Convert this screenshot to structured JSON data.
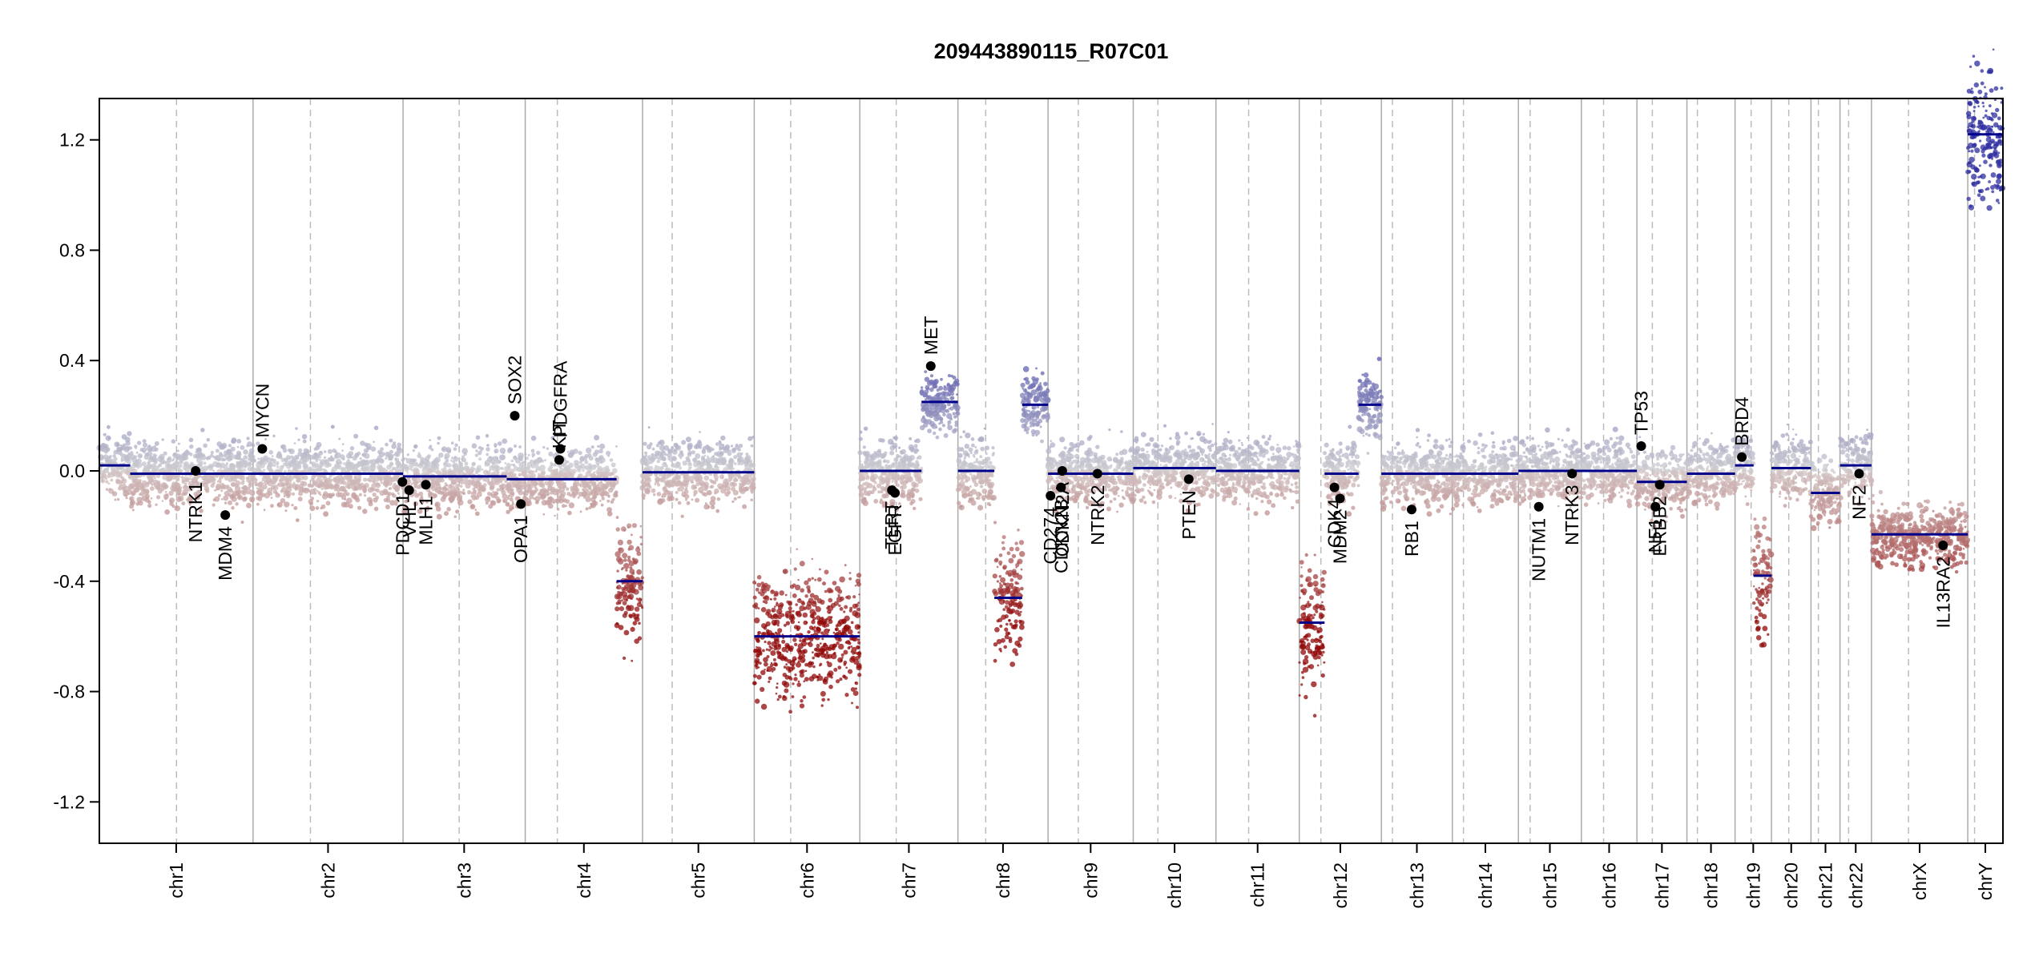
{
  "chart_data": {
    "type": "scatter",
    "title": "209443890115_R07C01",
    "xlabel": "",
    "ylabel": "",
    "ylim": [
      -1.35,
      1.35
    ],
    "yticks": [
      {
        "value": -1.2,
        "label": "-1.2"
      },
      {
        "value": -0.8,
        "label": "-0.8"
      },
      {
        "value": -0.4,
        "label": "-0.4"
      },
      {
        "value": 0.0,
        "label": "0.0"
      },
      {
        "value": 0.4,
        "label": "0.4"
      },
      {
        "value": 0.8,
        "label": "0.8"
      },
      {
        "value": 1.2,
        "label": "1.2"
      }
    ],
    "grid": false,
    "chromosomes": [
      {
        "name": "chr1",
        "start": 0,
        "end": 249,
        "centromere": 125
      },
      {
        "name": "chr2",
        "start": 249,
        "end": 492,
        "centromere": 342
      },
      {
        "name": "chr3",
        "start": 492,
        "end": 690,
        "centromere": 583
      },
      {
        "name": "chr4",
        "start": 690,
        "end": 880,
        "centromere": 742
      },
      {
        "name": "chr5",
        "start": 880,
        "end": 1061,
        "centromere": 928
      },
      {
        "name": "chr6",
        "start": 1061,
        "end": 1232,
        "centromere": 1120
      },
      {
        "name": "chr7",
        "start": 1232,
        "end": 1391,
        "centromere": 1291
      },
      {
        "name": "chr8",
        "start": 1391,
        "end": 1537,
        "centromere": 1436
      },
      {
        "name": "chr9",
        "start": 1537,
        "end": 1675,
        "centromere": 1586
      },
      {
        "name": "chr10",
        "start": 1675,
        "end": 1809,
        "centromere": 1715
      },
      {
        "name": "chr11",
        "start": 1809,
        "end": 1944,
        "centromere": 1862
      },
      {
        "name": "chr12",
        "start": 1944,
        "end": 2077,
        "centromere": 1979
      },
      {
        "name": "chr13",
        "start": 2077,
        "end": 2192,
        "centromere": 2095
      },
      {
        "name": "chr14",
        "start": 2192,
        "end": 2299,
        "centromere": 2210
      },
      {
        "name": "chr15",
        "start": 2299,
        "end": 2401,
        "centromere": 2318
      },
      {
        "name": "chr16",
        "start": 2401,
        "end": 2491,
        "centromere": 2437
      },
      {
        "name": "chr17",
        "start": 2491,
        "end": 2572,
        "centromere": 2516
      },
      {
        "name": "chr18",
        "start": 2572,
        "end": 2650,
        "centromere": 2589
      },
      {
        "name": "chr19",
        "start": 2650,
        "end": 2709,
        "centromere": 2676
      },
      {
        "name": "chr20",
        "start": 2709,
        "end": 2773,
        "centromere": 2737
      },
      {
        "name": "chr21",
        "start": 2773,
        "end": 2820,
        "centromere": 2785
      },
      {
        "name": "chr22",
        "start": 2820,
        "end": 2871,
        "centromere": 2834
      },
      {
        "name": "chrX",
        "start": 2871,
        "end": 3027,
        "centromere": 2931
      },
      {
        "name": "chrY",
        "start": 3027,
        "end": 3084,
        "centromere": 3038
      }
    ],
    "segments": [
      {
        "start": 0,
        "end": 50,
        "value": 0.02
      },
      {
        "start": 50,
        "end": 492,
        "value": -0.01
      },
      {
        "start": 492,
        "end": 660,
        "value": -0.02
      },
      {
        "start": 660,
        "end": 838,
        "value": -0.03
      },
      {
        "start": 838,
        "end": 880,
        "value": -0.4
      },
      {
        "start": 880,
        "end": 1061,
        "value": -0.005
      },
      {
        "start": 1061,
        "end": 1232,
        "value": -0.6
      },
      {
        "start": 1232,
        "end": 1332,
        "value": 0.0
      },
      {
        "start": 1332,
        "end": 1391,
        "value": 0.25
      },
      {
        "start": 1391,
        "end": 1450,
        "value": 0.0
      },
      {
        "start": 1450,
        "end": 1495,
        "value": -0.46
      },
      {
        "start": 1495,
        "end": 1537,
        "value": 0.24
      },
      {
        "start": 1537,
        "end": 1675,
        "value": -0.01
      },
      {
        "start": 1675,
        "end": 1809,
        "value": 0.01
      },
      {
        "start": 1809,
        "end": 1944,
        "value": 0.0
      },
      {
        "start": 1944,
        "end": 1985,
        "value": -0.55
      },
      {
        "start": 1985,
        "end": 2040,
        "value": -0.01
      },
      {
        "start": 2040,
        "end": 2077,
        "value": 0.24
      },
      {
        "start": 2077,
        "end": 2299,
        "value": -0.01
      },
      {
        "start": 2299,
        "end": 2491,
        "value": 0.0
      },
      {
        "start": 2491,
        "end": 2572,
        "value": -0.04
      },
      {
        "start": 2572,
        "end": 2650,
        "value": -0.01
      },
      {
        "start": 2650,
        "end": 2680,
        "value": 0.02
      },
      {
        "start": 2680,
        "end": 2709,
        "value": -0.38
      },
      {
        "start": 2709,
        "end": 2773,
        "value": 0.01
      },
      {
        "start": 2773,
        "end": 2820,
        "value": -0.08
      },
      {
        "start": 2820,
        "end": 2871,
        "value": 0.02
      },
      {
        "start": 2871,
        "end": 3027,
        "value": -0.23
      },
      {
        "start": 3027,
        "end": 3084,
        "value": 1.22
      }
    ],
    "genes": [
      {
        "name": "NTRK1",
        "x": 156,
        "y": 0.0
      },
      {
        "name": "MDM4",
        "x": 204,
        "y": -0.16
      },
      {
        "name": "MYCN",
        "x": 264,
        "y": 0.08
      },
      {
        "name": "PDCD1",
        "x": 491,
        "y": -0.04
      },
      {
        "name": "VHL",
        "x": 502,
        "y": -0.07
      },
      {
        "name": "MLH1",
        "x": 529,
        "y": -0.05
      },
      {
        "name": "SOX2",
        "x": 673,
        "y": 0.2
      },
      {
        "name": "OPA1",
        "x": 683,
        "y": -0.12
      },
      {
        "name": "KIT",
        "x": 745,
        "y": 0.04
      },
      {
        "name": "PDGFRA",
        "x": 747,
        "y": 0.08
      },
      {
        "name": "EGFR",
        "x": 1289,
        "y": -0.08
      },
      {
        "name": "TERT",
        "x": 1284,
        "y": -0.07
      },
      {
        "name": "MET",
        "x": 1347,
        "y": 0.38
      },
      {
        "name": "CD274",
        "x": 1541,
        "y": -0.09
      },
      {
        "name": "CDKN2B",
        "x": 1558,
        "y": -0.06
      },
      {
        "name": "CDKN2A",
        "x": 1560,
        "y": 0.0
      },
      {
        "name": "NTRK2",
        "x": 1617,
        "y": -0.01
      },
      {
        "name": "PTEN",
        "x": 1765,
        "y": -0.03
      },
      {
        "name": "CDK4",
        "x": 2001,
        "y": -0.06
      },
      {
        "name": "MDM2",
        "x": 2010,
        "y": -0.1
      },
      {
        "name": "RB1",
        "x": 2126,
        "y": -0.14
      },
      {
        "name": "NUTM1",
        "x": 2332,
        "y": -0.13
      },
      {
        "name": "NTRK3",
        "x": 2386,
        "y": -0.01
      },
      {
        "name": "TP53",
        "x": 2498,
        "y": 0.09
      },
      {
        "name": "NF1",
        "x": 2521,
        "y": -0.13
      },
      {
        "name": "ERBB2",
        "x": 2528,
        "y": -0.05
      },
      {
        "name": "BRD4",
        "x": 2661,
        "y": 0.05
      },
      {
        "name": "NF2",
        "x": 2851,
        "y": -0.01
      },
      {
        "name": "IL13RA2",
        "x": 2987,
        "y": -0.27
      }
    ]
  }
}
